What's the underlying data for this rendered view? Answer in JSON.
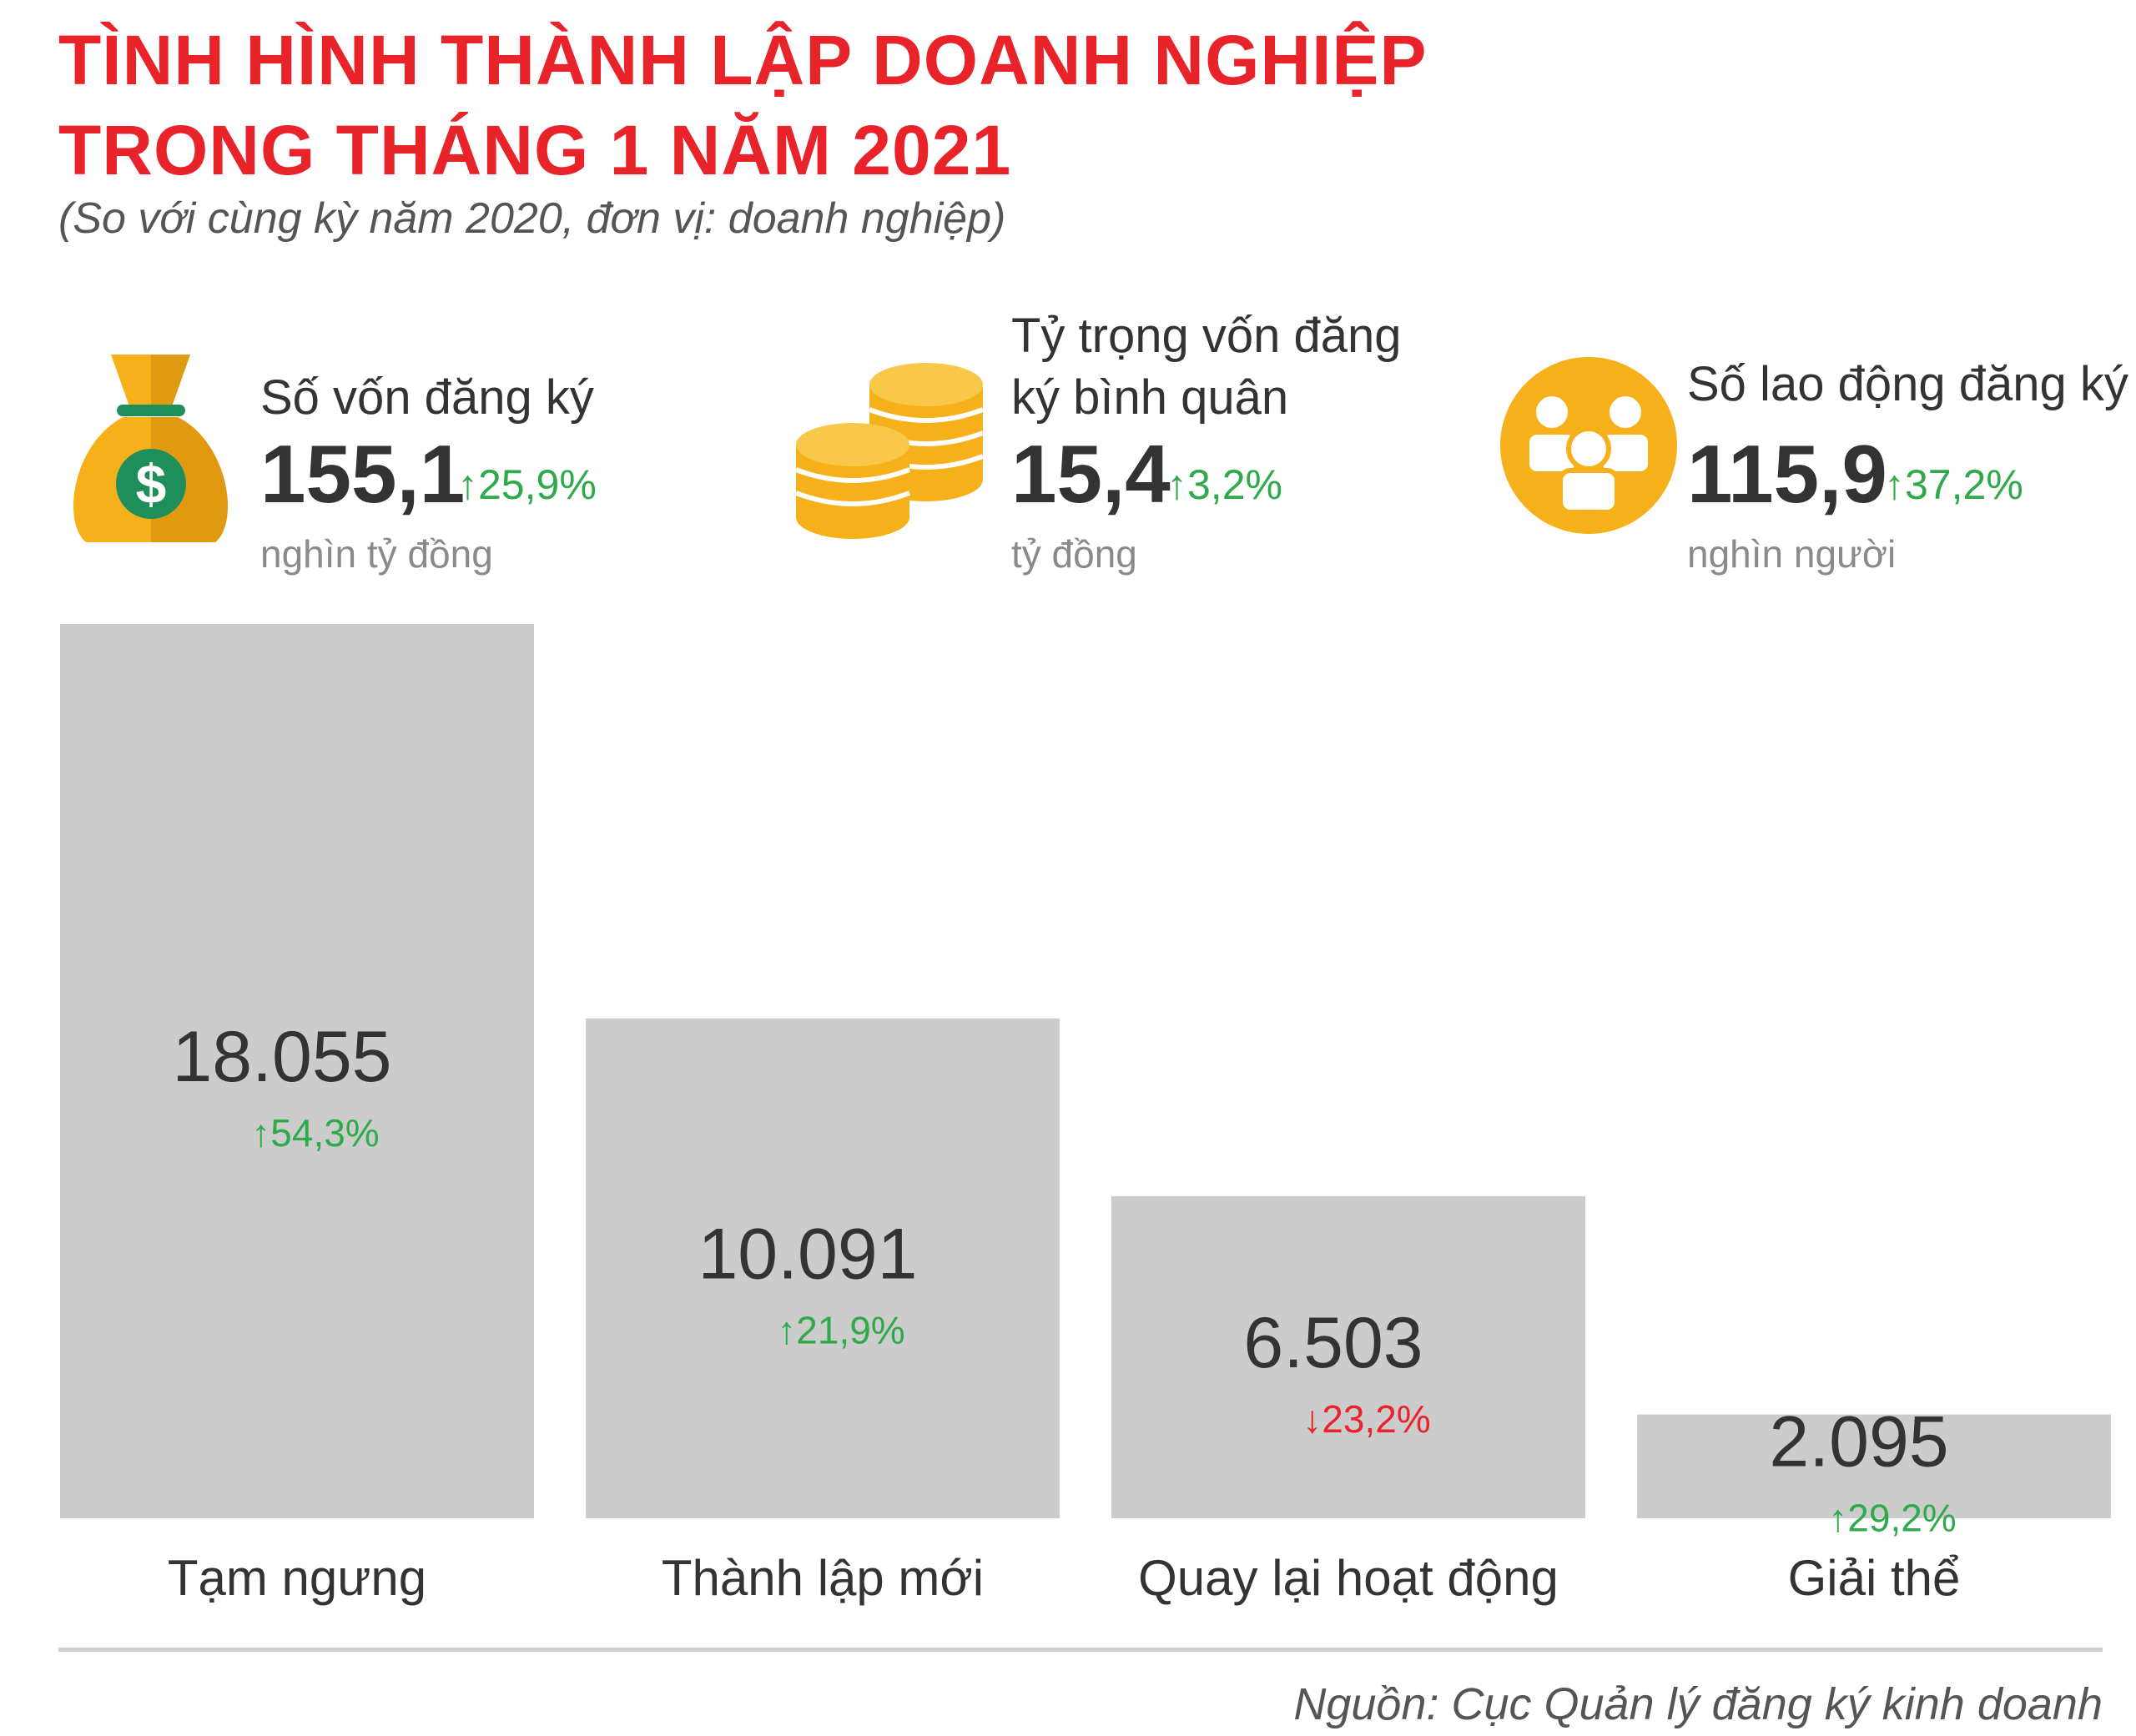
{
  "header": {
    "title_line1": "TÌNH HÌNH THÀNH LẬP DOANH NGHIỆP",
    "title_line2": "TRONG THÁNG 1 NĂM 2021",
    "subtitle": "(So với cùng kỳ năm 2020, đơn vị: doanh nghiệp)"
  },
  "stats": [
    {
      "icon": "money-bag-icon",
      "label": "Số vốn đăng ký",
      "value": "155,1",
      "change": "25,9%",
      "direction": "up",
      "unit": "nghìn tỷ đồng"
    },
    {
      "icon": "coins-icon",
      "label_line1": "Tỷ trọng vốn đăng",
      "label_line2": "ký bình quân",
      "value": "15,4",
      "change": "3,2%",
      "direction": "up",
      "unit": "tỷ đồng"
    },
    {
      "icon": "people-icon",
      "label": "Số lao động đăng ký",
      "value": "115,9",
      "change": "37,2%",
      "direction": "up",
      "unit": "nghìn người"
    }
  ],
  "colors": {
    "title": "#e8232a",
    "bar": "#cccccc",
    "up": "#2eaa4a",
    "down": "#e8232a",
    "icon": "#f6b11a"
  },
  "chart_data": {
    "type": "bar",
    "title": "",
    "xlabel": "",
    "ylabel": "",
    "categories": [
      "Tạm ngưng",
      "Thành lập mới",
      "Quay lại hoạt động",
      "Giải thể"
    ],
    "values": [
      18055,
      10091,
      6503,
      2095
    ],
    "value_labels": [
      "18.055",
      "10.091",
      "6.503",
      "2.095"
    ],
    "changes": [
      "54,3%",
      "21,9%",
      "23,2%",
      "29,2%"
    ],
    "change_directions": [
      "up",
      "up",
      "down",
      "up"
    ],
    "ylim": [
      0,
      18055
    ],
    "grid": false,
    "legend": "none"
  },
  "footer": {
    "source": "Nguồn: Cục Quản lý đăng ký kinh doanh"
  }
}
